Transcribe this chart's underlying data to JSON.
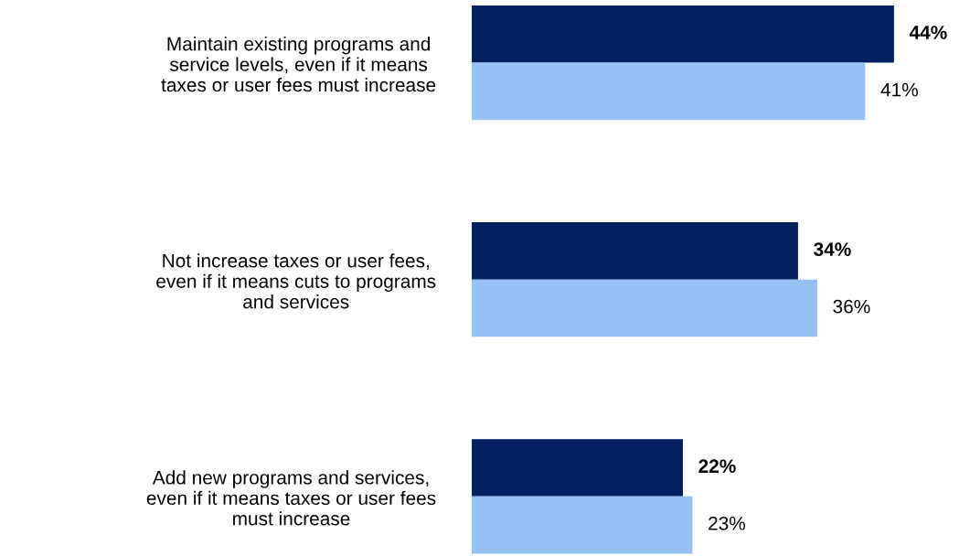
{
  "chart_data": {
    "type": "bar",
    "orientation": "horizontal",
    "tick_labels": "y",
    "grid": false,
    "legend": false,
    "categories": [
      "Maintain existing programs and\nservice levels, even if it means\ntaxes or user fees must increase",
      "Not increase taxes or user fees,\neven if it means cuts to programs\nand services",
      "Add new programs and services,\neven if it means taxes or user fees\nmust increase"
    ],
    "series": [
      {
        "color": "#002060",
        "values": [
          44,
          34,
          22
        ],
        "value_labels": [
          "44%",
          "34%",
          "22%"
        ]
      },
      {
        "color": "#95c1f5",
        "values": [
          41,
          36,
          23
        ],
        "value_labels": [
          "41%",
          "36%",
          "23%"
        ]
      }
    ]
  }
}
